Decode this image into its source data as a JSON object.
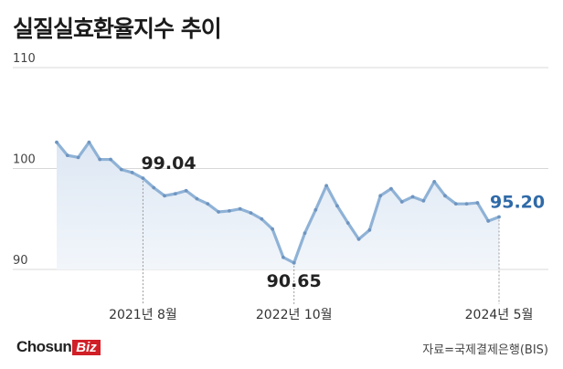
{
  "title": "실질실효환율지수 추이",
  "brand": {
    "main": "Chosun",
    "accent": "Biz"
  },
  "source": "자료=국제결제은행(BIS)",
  "colors": {
    "line": "#8fb2d6",
    "marker": "#6f95c0",
    "fill_top": "#dfe8f3",
    "highlight": "#2f6aa8",
    "text": "#222222"
  },
  "chart_data": {
    "type": "area",
    "title": "실질실효환율지수 추이",
    "xlabel": "",
    "ylabel": "",
    "ylim": [
      90,
      110
    ],
    "yticks": [
      90,
      100,
      110
    ],
    "grid": true,
    "x_labels": [
      {
        "index": 8,
        "label": "2021년 8월"
      },
      {
        "index": 22,
        "label": "2022년 10월"
      },
      {
        "index": 41,
        "label": "2024년 5월"
      }
    ],
    "series": [
      {
        "values": [
          102.6,
          101.3,
          101.1,
          102.6,
          100.9,
          100.9,
          99.9,
          99.6,
          99.04,
          98.1,
          97.3,
          97.5,
          97.8,
          97.0,
          96.5,
          95.7,
          95.8,
          96.0,
          95.6,
          95.0,
          94.0,
          91.2,
          90.65,
          93.6,
          95.9,
          98.3,
          96.3,
          94.6,
          93.0,
          93.9,
          97.3,
          98.0,
          96.7,
          97.2,
          96.8,
          98.7,
          97.3,
          96.5,
          96.5,
          96.6,
          94.8,
          95.2
        ]
      }
    ],
    "annotations": [
      {
        "index": 8,
        "label": "99.04"
      },
      {
        "index": 22,
        "label": "90.65"
      },
      {
        "index": 41,
        "label": "95.20"
      }
    ]
  }
}
